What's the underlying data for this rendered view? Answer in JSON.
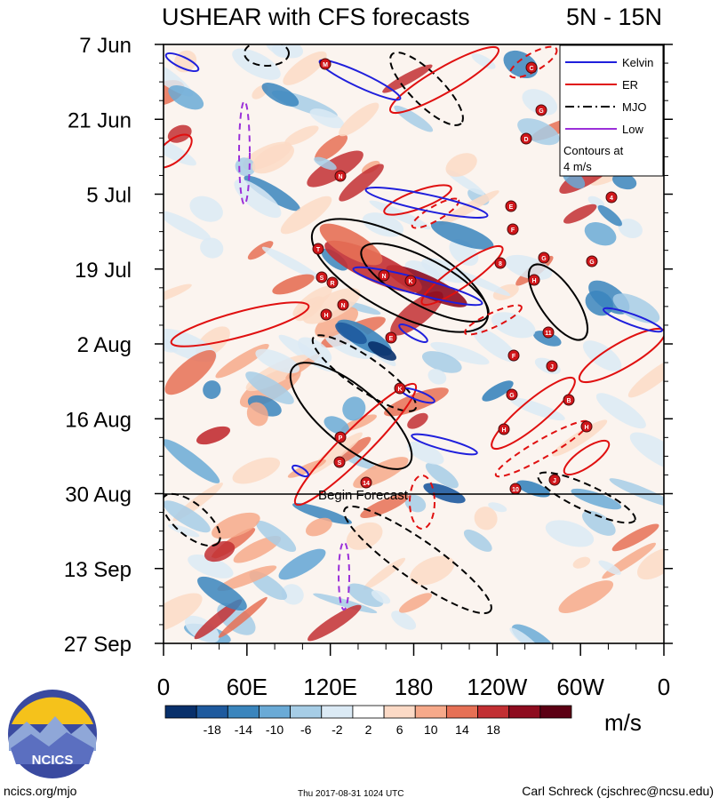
{
  "chart_data": {
    "type": "heatmap",
    "title": "USHEAR with CFS forecasts",
    "subtitle": "5N - 15N",
    "xlabel": "",
    "ylabel": "",
    "x_ticks": [
      "0",
      "60E",
      "120E",
      "180",
      "120W",
      "60W",
      "0"
    ],
    "y_ticks": [
      "7 Jun",
      "21 Jun",
      "5 Jul",
      "19 Jul",
      "2 Aug",
      "16 Aug",
      "30 Aug",
      "13 Sep",
      "27 Sep"
    ],
    "forecast_label": "Begin Forecast",
    "colorbar": {
      "ticks": [
        "-18",
        "-14",
        "-10",
        "-6",
        "-2",
        "2",
        "6",
        "10",
        "14",
        "18"
      ],
      "colors": [
        "#08306b",
        "#1e5a9e",
        "#3a85bd",
        "#6aaad6",
        "#a6cde6",
        "#dbeaf5",
        "#ffffff",
        "#fcdac6",
        "#f6a98a",
        "#e67055",
        "#c22f33",
        "#8e0c1f",
        "#5c0014"
      ],
      "unit": "m/s"
    },
    "legend": {
      "items": [
        {
          "label": "Kelvin",
          "color": "#1f1fdc",
          "style": "solid"
        },
        {
          "label": "ER",
          "color": "#e01010",
          "style": "solid"
        },
        {
          "label": "MJO",
          "color": "#000000",
          "style": "dashdot"
        },
        {
          "label": "Low",
          "color": "#9b30d9",
          "style": "solid"
        }
      ],
      "note_line1": "Contours at",
      "note_line2": "4 m/s"
    },
    "storm_markers": [
      "M",
      "C",
      "G",
      "D",
      "N",
      "4",
      "E",
      "F",
      "T",
      "G",
      "S",
      "R",
      "N",
      "K",
      "8",
      "G",
      "H",
      "H",
      "N",
      "E",
      "11",
      "F",
      "J",
      "G",
      "B",
      "K",
      "H",
      "H",
      "P",
      "S",
      "14",
      "10",
      "J"
    ]
  },
  "footer": {
    "logo_text": "NCICS",
    "website": "ncics.org/mjo",
    "timestamp": "Thu 2017-08-31 1024 UTC",
    "author": "Carl Schreck (cjschrec@ncsu.edu)"
  }
}
